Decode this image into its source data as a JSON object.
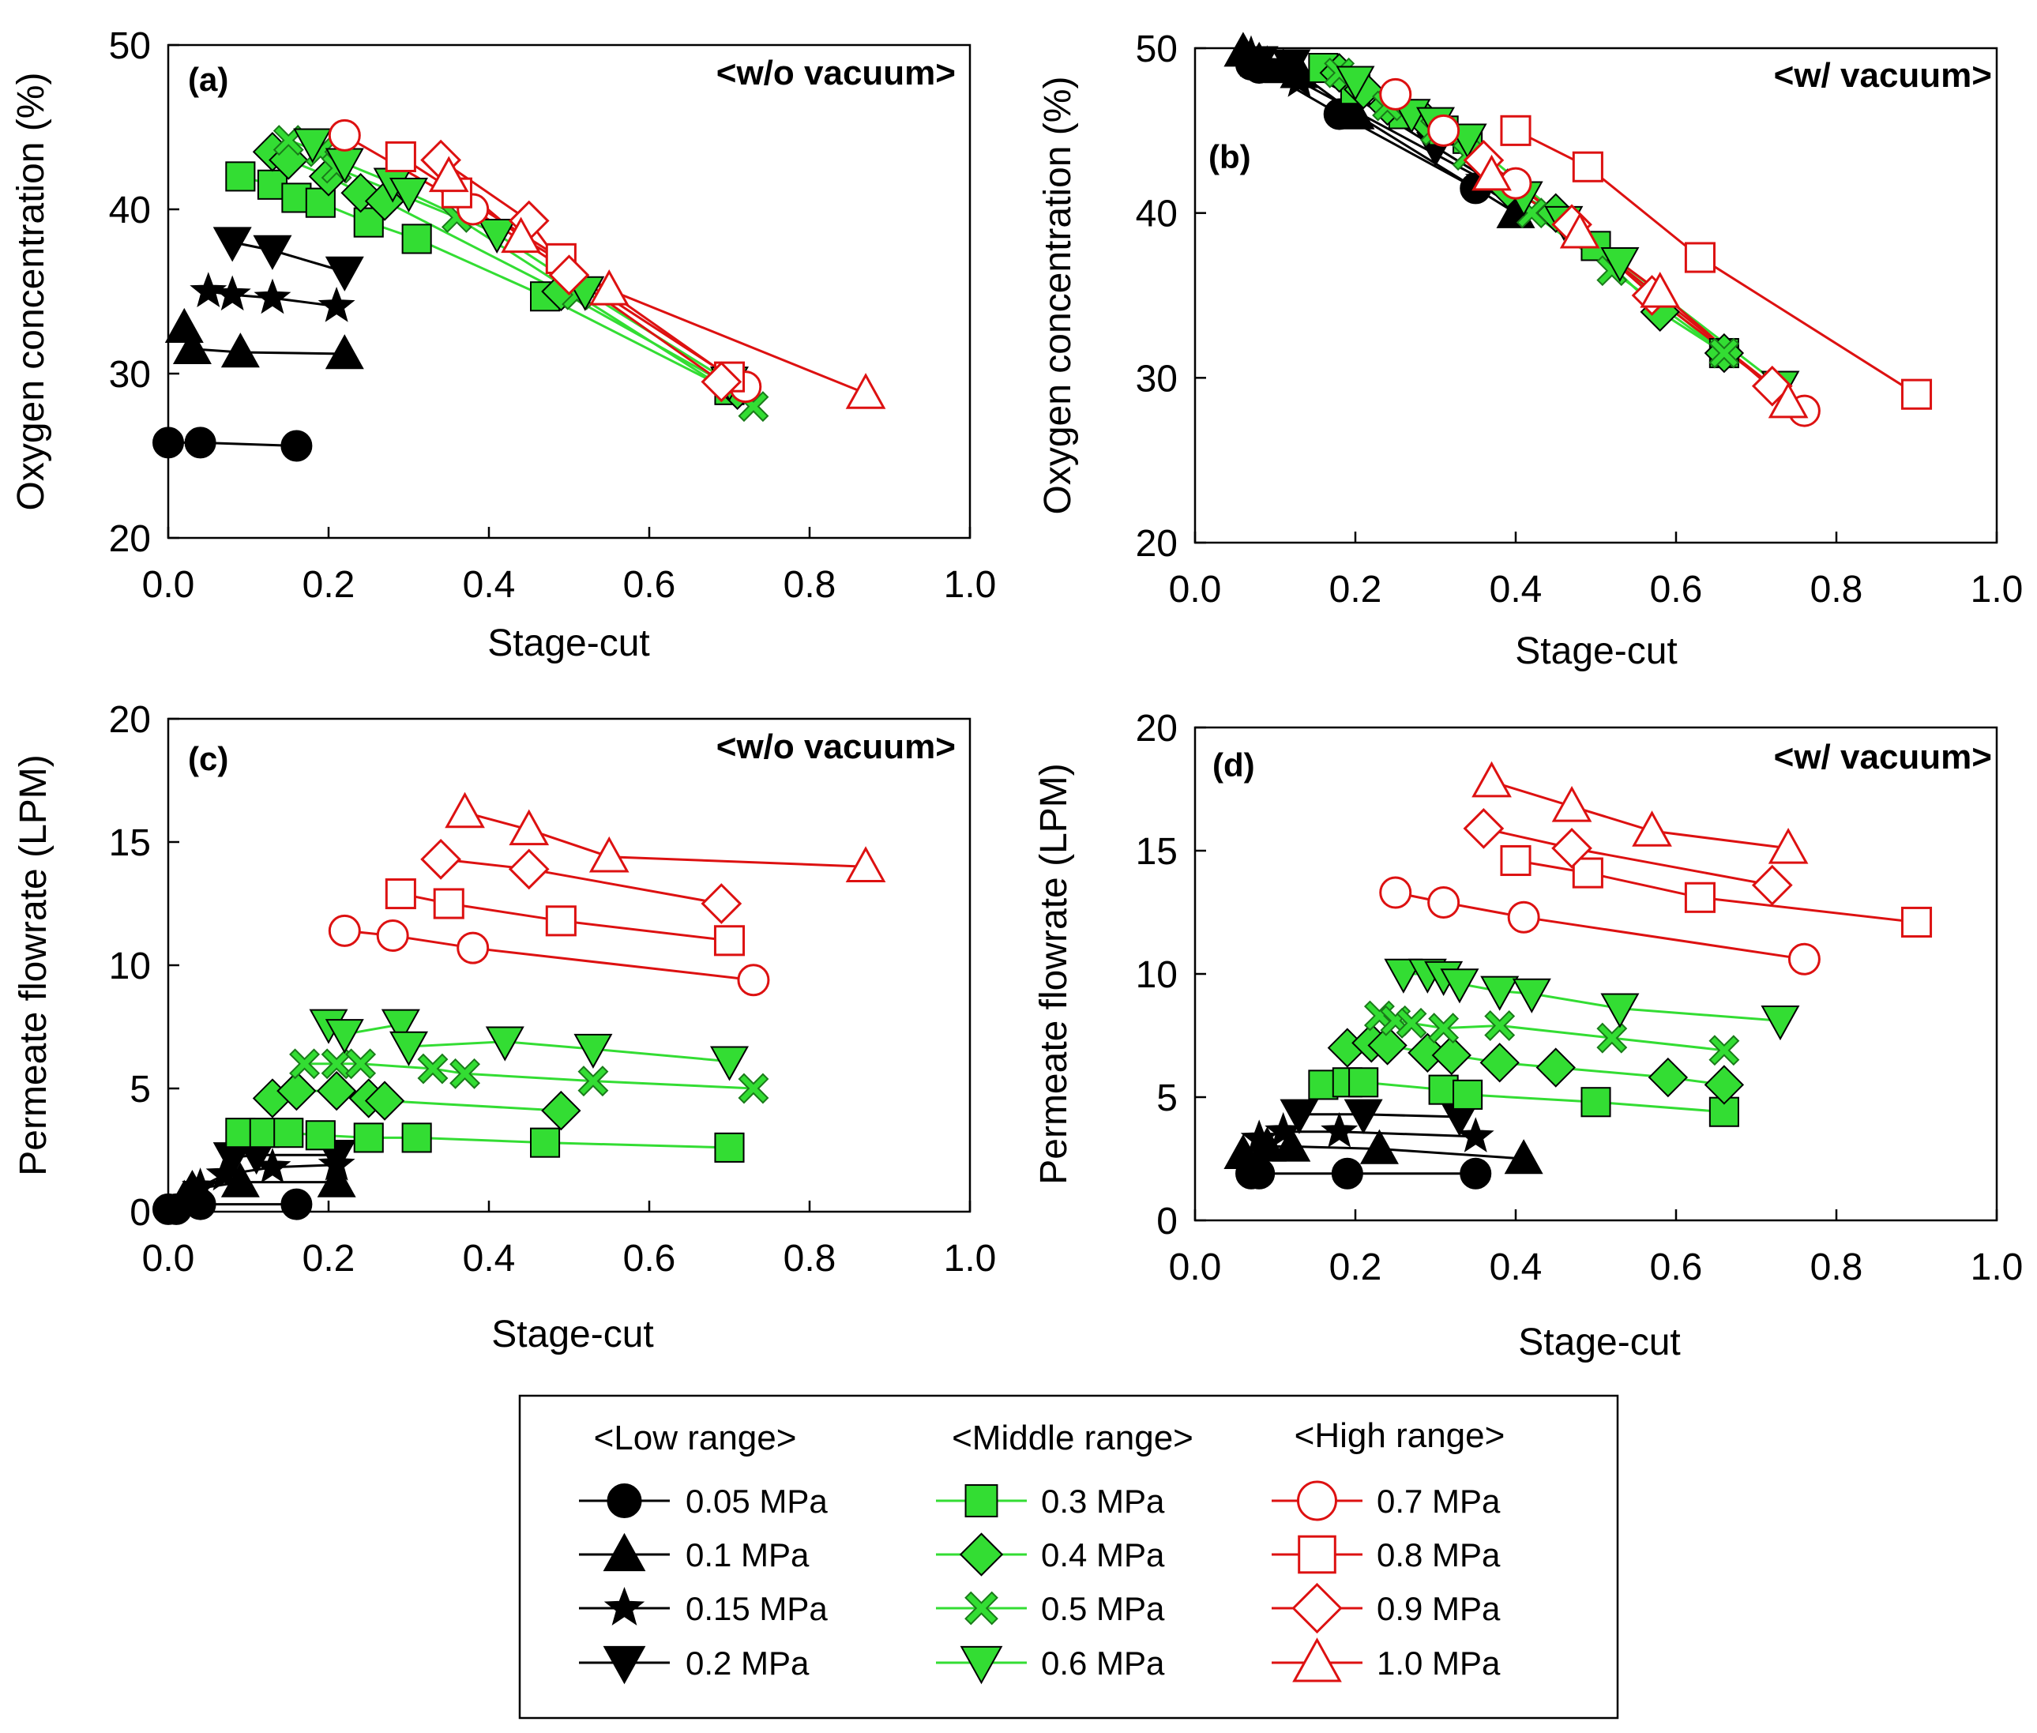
{
  "legend": {
    "groups": [
      {
        "title": "<Low range>",
        "series_ids": [
          "s005",
          "s01",
          "s015",
          "s02"
        ]
      },
      {
        "title": "<Middle range>",
        "series_ids": [
          "s03",
          "s04",
          "s05",
          "s06"
        ]
      },
      {
        "title": "<High range>",
        "series_ids": [
          "s07",
          "s08",
          "s09",
          "s10"
        ]
      }
    ]
  },
  "series_styles": [
    {
      "id": "s005",
      "name": "0.05 MPa",
      "group": "low",
      "marker": "circle",
      "fill": "#000000",
      "stroke": "#000000",
      "line": "#000000"
    },
    {
      "id": "s01",
      "name": "0.1 MPa",
      "group": "low",
      "marker": "triangle-up",
      "fill": "#000000",
      "stroke": "#000000",
      "line": "#000000"
    },
    {
      "id": "s015",
      "name": "0.15 MPa",
      "group": "low",
      "marker": "star",
      "fill": "#000000",
      "stroke": "#000000",
      "line": "#000000"
    },
    {
      "id": "s02",
      "name": "0.2 MPa",
      "group": "low",
      "marker": "triangle-down",
      "fill": "#000000",
      "stroke": "#000000",
      "line": "#000000"
    },
    {
      "id": "s03",
      "name": "0.3 MPa",
      "group": "middle",
      "marker": "square",
      "fill": "#33dd33",
      "stroke": "#000000",
      "line": "#33dd33"
    },
    {
      "id": "s04",
      "name": "0.4 MPa",
      "group": "middle",
      "marker": "diamond",
      "fill": "#33dd33",
      "stroke": "#000000",
      "line": "#33dd33"
    },
    {
      "id": "s05",
      "name": "0.5 MPa",
      "group": "middle",
      "marker": "x",
      "fill": "#33dd33",
      "stroke": "#1a7a1a",
      "line": "#33dd33"
    },
    {
      "id": "s06",
      "name": "0.6 MPa",
      "group": "middle",
      "marker": "triangle-down",
      "fill": "#33dd33",
      "stroke": "#000000",
      "line": "#33dd33"
    },
    {
      "id": "s07",
      "name": "0.7 MPa",
      "group": "high",
      "marker": "circle",
      "fill": "#ffffff",
      "stroke": "#dd1111",
      "line": "#dd1111"
    },
    {
      "id": "s08",
      "name": "0.8 MPa",
      "group": "high",
      "marker": "square",
      "fill": "#ffffff",
      "stroke": "#dd1111",
      "line": "#dd1111"
    },
    {
      "id": "s09",
      "name": "0.9 MPa",
      "group": "high",
      "marker": "diamond",
      "fill": "#ffffff",
      "stroke": "#dd1111",
      "line": "#dd1111"
    },
    {
      "id": "s10",
      "name": "1.0 MPa",
      "group": "high",
      "marker": "triangle-up",
      "fill": "#ffffff",
      "stroke": "#dd1111",
      "line": "#dd1111"
    }
  ],
  "chart_data": [
    {
      "id": "a",
      "type": "line",
      "panel_label": "(a)",
      "title": "<w/o vacuum>",
      "xlabel": "Stage-cut",
      "ylabel": "Oxygen concentration (%)",
      "xlim": [
        0,
        1.0
      ],
      "ylim": [
        20,
        50
      ],
      "xticks": [
        "0.0",
        "0.2",
        "0.4",
        "0.6",
        "0.8",
        "1.0"
      ],
      "yticks": [
        "20",
        "30",
        "40",
        "50"
      ],
      "series": [
        {
          "ref": "s005",
          "x": [
            0.0,
            0.04,
            0.16
          ],
          "y": [
            25.8,
            25.8,
            25.6
          ]
        },
        {
          "ref": "s01",
          "x": [
            0.02,
            0.03,
            0.09,
            0.22
          ],
          "y": [
            32.8,
            31.5,
            31.3,
            31.2
          ]
        },
        {
          "ref": "s015",
          "x": [
            0.05,
            0.08,
            0.13,
            0.21
          ],
          "y": [
            35.0,
            34.8,
            34.6,
            34.1
          ]
        },
        {
          "ref": "s02",
          "x": [
            0.08,
            0.13,
            0.22
          ],
          "y": [
            38.0,
            37.5,
            36.2
          ]
        },
        {
          "ref": "s03",
          "x": [
            0.09,
            0.13,
            0.16,
            0.19,
            0.25,
            0.31,
            0.47,
            0.7
          ],
          "y": [
            42.0,
            41.5,
            40.7,
            40.4,
            39.2,
            38.2,
            34.7,
            29.0
          ]
        },
        {
          "ref": "s04",
          "x": [
            0.13,
            0.15,
            0.2,
            0.24,
            0.27,
            0.49,
            0.71
          ],
          "y": [
            43.5,
            43.0,
            42.0,
            41.0,
            40.5,
            35.0,
            29.0
          ]
        },
        {
          "ref": "s05",
          "x": [
            0.15,
            0.19,
            0.21,
            0.36,
            0.51,
            0.73
          ],
          "y": [
            44.2,
            43.5,
            42.5,
            39.5,
            34.8,
            28.0
          ]
        },
        {
          "ref": "s06",
          "x": [
            0.18,
            0.22,
            0.28,
            0.3,
            0.41,
            0.52,
            0.7
          ],
          "y": [
            44.0,
            42.8,
            41.6,
            41.0,
            38.5,
            35.0,
            29.5
          ]
        },
        {
          "ref": "s07",
          "x": [
            0.22,
            0.38,
            0.72
          ],
          "y": [
            44.5,
            40.0,
            29.2
          ]
        },
        {
          "ref": "s08",
          "x": [
            0.29,
            0.36,
            0.49,
            0.7
          ],
          "y": [
            43.2,
            41.0,
            37.0,
            29.8
          ]
        },
        {
          "ref": "s09",
          "x": [
            0.34,
            0.45,
            0.5,
            0.69
          ],
          "y": [
            43.0,
            39.3,
            36.0,
            29.5
          ]
        },
        {
          "ref": "s10",
          "x": [
            0.35,
            0.44,
            0.55,
            0.87
          ],
          "y": [
            42.0,
            38.3,
            35.1,
            28.8
          ]
        }
      ]
    },
    {
      "id": "b",
      "type": "line",
      "panel_label": "(b)",
      "title": "<w/ vacuum>",
      "xlabel": "Stage-cut",
      "ylabel": "Oxygen concentration (%)",
      "xlim": [
        0,
        1.0
      ],
      "ylim": [
        20,
        50
      ],
      "xticks": [
        "0.0",
        "0.2",
        "0.4",
        "0.6",
        "0.8",
        "1.0"
      ],
      "yticks": [
        "20",
        "30",
        "40",
        "50"
      ],
      "series": [
        {
          "ref": "s005",
          "x": [
            0.07,
            0.08,
            0.18,
            0.35
          ],
          "y": [
            49.0,
            48.8,
            46.0,
            41.5
          ]
        },
        {
          "ref": "s01",
          "x": [
            0.06,
            0.08,
            0.11,
            0.13,
            0.2,
            0.4
          ],
          "y": [
            49.8,
            49.2,
            48.8,
            48.5,
            46.0,
            40.0
          ]
        },
        {
          "ref": "s015",
          "x": [
            0.07,
            0.09,
            0.13,
            0.36
          ],
          "y": [
            49.6,
            49.0,
            48.0,
            42.0
          ]
        },
        {
          "ref": "s02",
          "x": [
            0.08,
            0.12,
            0.2,
            0.3,
            0.4
          ],
          "y": [
            49.2,
            49.0,
            47.0,
            44.0,
            41.0
          ]
        },
        {
          "ref": "s03",
          "x": [
            0.16,
            0.2,
            0.26,
            0.31,
            0.34,
            0.5,
            0.66
          ],
          "y": [
            48.8,
            47.5,
            46.0,
            45.0,
            44.5,
            38.0,
            31.5
          ]
        },
        {
          "ref": "s04",
          "x": [
            0.18,
            0.21,
            0.24,
            0.29,
            0.39,
            0.45,
            0.58,
            0.66
          ],
          "y": [
            48.5,
            47.5,
            46.5,
            45.5,
            41.5,
            40.0,
            34.0,
            31.5
          ]
        },
        {
          "ref": "s05",
          "x": [
            0.18,
            0.24,
            0.3,
            0.34,
            0.42,
            0.52,
            0.66
          ],
          "y": [
            48.5,
            46.5,
            45.0,
            43.5,
            40.0,
            36.5,
            31.5
          ]
        },
        {
          "ref": "s06",
          "x": [
            0.2,
            0.27,
            0.3,
            0.34,
            0.41,
            0.46,
            0.53,
            0.73
          ],
          "y": [
            48.0,
            46.0,
            45.5,
            44.5,
            41.0,
            39.5,
            37.0,
            29.5
          ]
        },
        {
          "ref": "s07",
          "x": [
            0.25,
            0.31,
            0.4,
            0.76
          ],
          "y": [
            47.2,
            45.0,
            41.8,
            28.0
          ]
        },
        {
          "ref": "s08",
          "x": [
            0.4,
            0.49,
            0.63,
            0.9
          ],
          "y": [
            45.0,
            42.8,
            37.3,
            29.0
          ]
        },
        {
          "ref": "s09",
          "x": [
            0.36,
            0.47,
            0.57,
            0.72
          ],
          "y": [
            43.2,
            39.3,
            35.0,
            29.5
          ]
        },
        {
          "ref": "s10",
          "x": [
            0.37,
            0.48,
            0.58,
            0.74
          ],
          "y": [
            42.3,
            38.8,
            35.2,
            28.5
          ]
        }
      ]
    },
    {
      "id": "c",
      "type": "line",
      "panel_label": "(c)",
      "title": "<w/o vacuum>",
      "xlabel": "Stage-cut",
      "ylabel": "Permeate flowrate (LPM)",
      "xlim": [
        0,
        1.0
      ],
      "ylim": [
        0,
        20
      ],
      "xticks": [
        "0.0",
        "0.2",
        "0.4",
        "0.6",
        "0.8",
        "1.0"
      ],
      "yticks": [
        "0",
        "5",
        "10",
        "15",
        "20"
      ],
      "series": [
        {
          "ref": "s005",
          "x": [
            0.0,
            0.01,
            0.04,
            0.16
          ],
          "y": [
            0.1,
            0.1,
            0.3,
            0.3
          ]
        },
        {
          "ref": "s01",
          "x": [
            0.02,
            0.03,
            0.09,
            0.21
          ],
          "y": [
            0.5,
            0.9,
            1.2,
            1.2
          ]
        },
        {
          "ref": "s015",
          "x": [
            0.04,
            0.07,
            0.13,
            0.21
          ],
          "y": [
            1.0,
            1.5,
            1.8,
            1.9
          ]
        },
        {
          "ref": "s02",
          "x": [
            0.08,
            0.11,
            0.21
          ],
          "y": [
            2.2,
            2.3,
            2.3
          ]
        },
        {
          "ref": "s03",
          "x": [
            0.09,
            0.12,
            0.15,
            0.19,
            0.25,
            0.31,
            0.47,
            0.7
          ],
          "y": [
            3.2,
            3.2,
            3.2,
            3.1,
            3.0,
            3.0,
            2.8,
            2.6
          ]
        },
        {
          "ref": "s04",
          "x": [
            0.13,
            0.16,
            0.21,
            0.25,
            0.27,
            0.49
          ],
          "y": [
            4.6,
            4.9,
            4.9,
            4.6,
            4.5,
            4.1
          ]
        },
        {
          "ref": "s05",
          "x": [
            0.17,
            0.21,
            0.24,
            0.33,
            0.37,
            0.53,
            0.73
          ],
          "y": [
            6.0,
            6.0,
            6.0,
            5.8,
            5.6,
            5.3,
            5.0
          ]
        },
        {
          "ref": "s06",
          "x": [
            0.2,
            0.22,
            0.29,
            0.3,
            0.42,
            0.53,
            0.7
          ],
          "y": [
            7.6,
            7.2,
            7.6,
            6.7,
            6.9,
            6.6,
            6.1
          ]
        },
        {
          "ref": "s07",
          "x": [
            0.22,
            0.28,
            0.38,
            0.73
          ],
          "y": [
            11.4,
            11.2,
            10.7,
            9.4
          ]
        },
        {
          "ref": "s08",
          "x": [
            0.29,
            0.35,
            0.49,
            0.7
          ],
          "y": [
            12.9,
            12.5,
            11.8,
            11.0
          ]
        },
        {
          "ref": "s09",
          "x": [
            0.34,
            0.45,
            0.69
          ],
          "y": [
            14.3,
            13.9,
            12.5
          ]
        },
        {
          "ref": "s10",
          "x": [
            0.37,
            0.45,
            0.55,
            0.87
          ],
          "y": [
            16.2,
            15.5,
            14.4,
            14.0
          ]
        }
      ]
    },
    {
      "id": "d",
      "type": "line",
      "panel_label": "(d)",
      "title": "<w/ vacuum>",
      "xlabel": "Stage-cut",
      "ylabel": "Permeate flowrate (LPM)",
      "xlim": [
        0,
        1.0
      ],
      "ylim": [
        0,
        20
      ],
      "xticks": [
        "0.0",
        "0.2",
        "0.4",
        "0.6",
        "0.8",
        "1.0"
      ],
      "yticks": [
        "0",
        "5",
        "10",
        "15",
        "20"
      ],
      "series": [
        {
          "ref": "s005",
          "x": [
            0.07,
            0.08,
            0.19,
            0.35
          ],
          "y": [
            1.9,
            1.9,
            1.9,
            1.9
          ]
        },
        {
          "ref": "s01",
          "x": [
            0.06,
            0.09,
            0.12,
            0.23,
            0.41
          ],
          "y": [
            2.7,
            3.0,
            3.0,
            2.9,
            2.5
          ]
        },
        {
          "ref": "s015",
          "x": [
            0.08,
            0.11,
            0.18,
            0.35
          ],
          "y": [
            3.3,
            3.6,
            3.6,
            3.4
          ]
        },
        {
          "ref": "s02",
          "x": [
            0.13,
            0.21,
            0.33
          ],
          "y": [
            4.3,
            4.3,
            4.2
          ]
        },
        {
          "ref": "s03",
          "x": [
            0.16,
            0.19,
            0.21,
            0.31,
            0.34,
            0.5,
            0.66
          ],
          "y": [
            5.5,
            5.6,
            5.6,
            5.3,
            5.1,
            4.8,
            4.4
          ]
        },
        {
          "ref": "s04",
          "x": [
            0.19,
            0.22,
            0.24,
            0.29,
            0.32,
            0.38,
            0.45,
            0.59,
            0.66
          ],
          "y": [
            7.0,
            7.2,
            7.1,
            6.8,
            6.7,
            6.4,
            6.2,
            5.8,
            5.5
          ]
        },
        {
          "ref": "s05",
          "x": [
            0.23,
            0.25,
            0.27,
            0.31,
            0.38,
            0.52,
            0.66
          ],
          "y": [
            8.3,
            8.1,
            8.0,
            7.8,
            7.9,
            7.4,
            6.9
          ]
        },
        {
          "ref": "s06",
          "x": [
            0.26,
            0.29,
            0.31,
            0.33,
            0.38,
            0.42,
            0.53,
            0.73
          ],
          "y": [
            10.0,
            10.0,
            9.9,
            9.6,
            9.3,
            9.2,
            8.6,
            8.1
          ]
        },
        {
          "ref": "s07",
          "x": [
            0.25,
            0.31,
            0.41,
            0.76
          ],
          "y": [
            13.3,
            12.9,
            12.3,
            10.6
          ]
        },
        {
          "ref": "s08",
          "x": [
            0.4,
            0.49,
            0.63,
            0.9
          ],
          "y": [
            14.6,
            14.1,
            13.1,
            12.1
          ]
        },
        {
          "ref": "s09",
          "x": [
            0.36,
            0.47,
            0.72
          ],
          "y": [
            15.9,
            15.1,
            13.6
          ]
        },
        {
          "ref": "s10",
          "x": [
            0.37,
            0.47,
            0.57,
            0.74
          ],
          "y": [
            17.8,
            16.8,
            15.8,
            15.1
          ]
        }
      ]
    }
  ]
}
